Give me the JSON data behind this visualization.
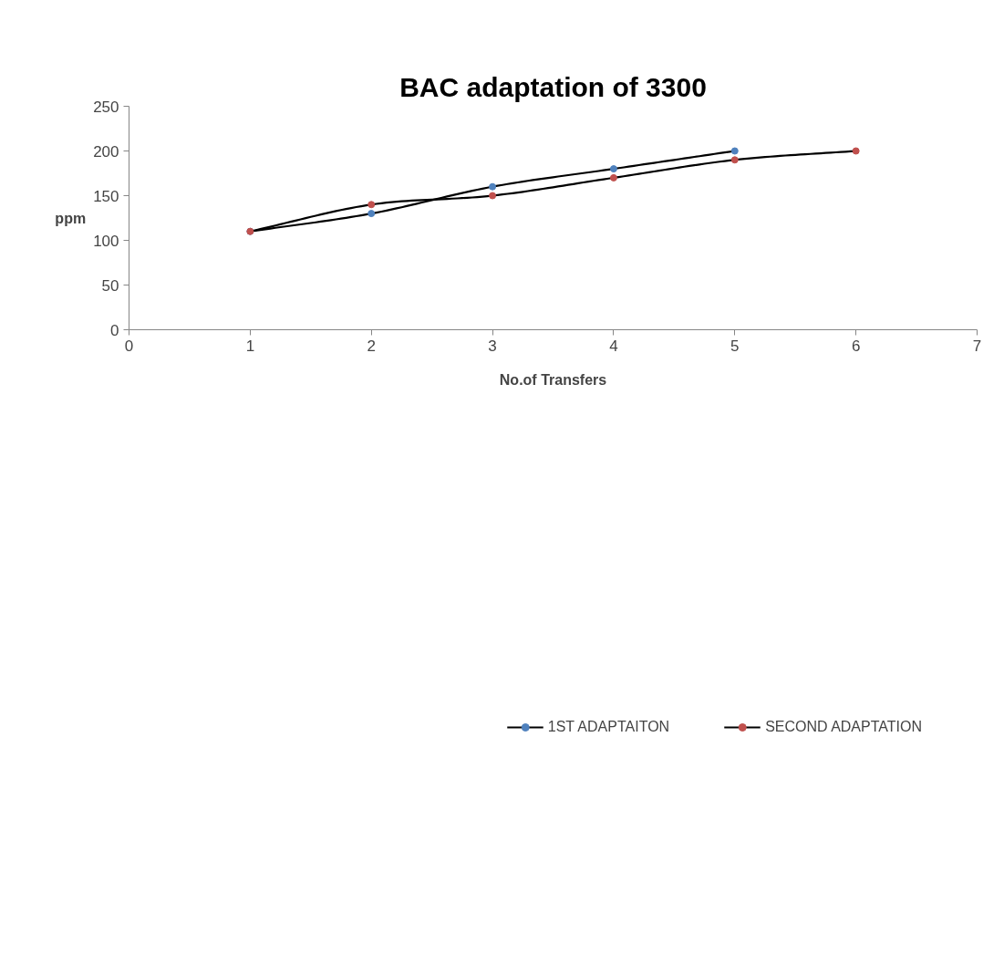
{
  "chart_data": {
    "type": "line",
    "title": "BAC adaptation of 3300",
    "xlabel": "No.of Transfers",
    "ylabel": "ppm",
    "xlim": [
      0,
      7
    ],
    "xticks": [
      0,
      1,
      2,
      3,
      4,
      5,
      6,
      7
    ],
    "ylim": [
      0,
      250
    ],
    "yticks": [
      0,
      50,
      100,
      150,
      200,
      250
    ],
    "grid": false,
    "legend": "bottom",
    "marker": "circle",
    "line_style": "solid",
    "series": [
      {
        "name": "1ST ADAPTAITON",
        "color": "#4f81bd",
        "x": [
          1,
          2,
          3,
          4,
          5
        ],
        "values": [
          110,
          130,
          160,
          180,
          200
        ]
      },
      {
        "name": "SECOND ADAPTATION",
        "color": "#c0504d",
        "x": [
          1,
          2,
          3,
          4,
          5,
          6
        ],
        "values": [
          110,
          140,
          150,
          170,
          190,
          200
        ]
      }
    ]
  }
}
